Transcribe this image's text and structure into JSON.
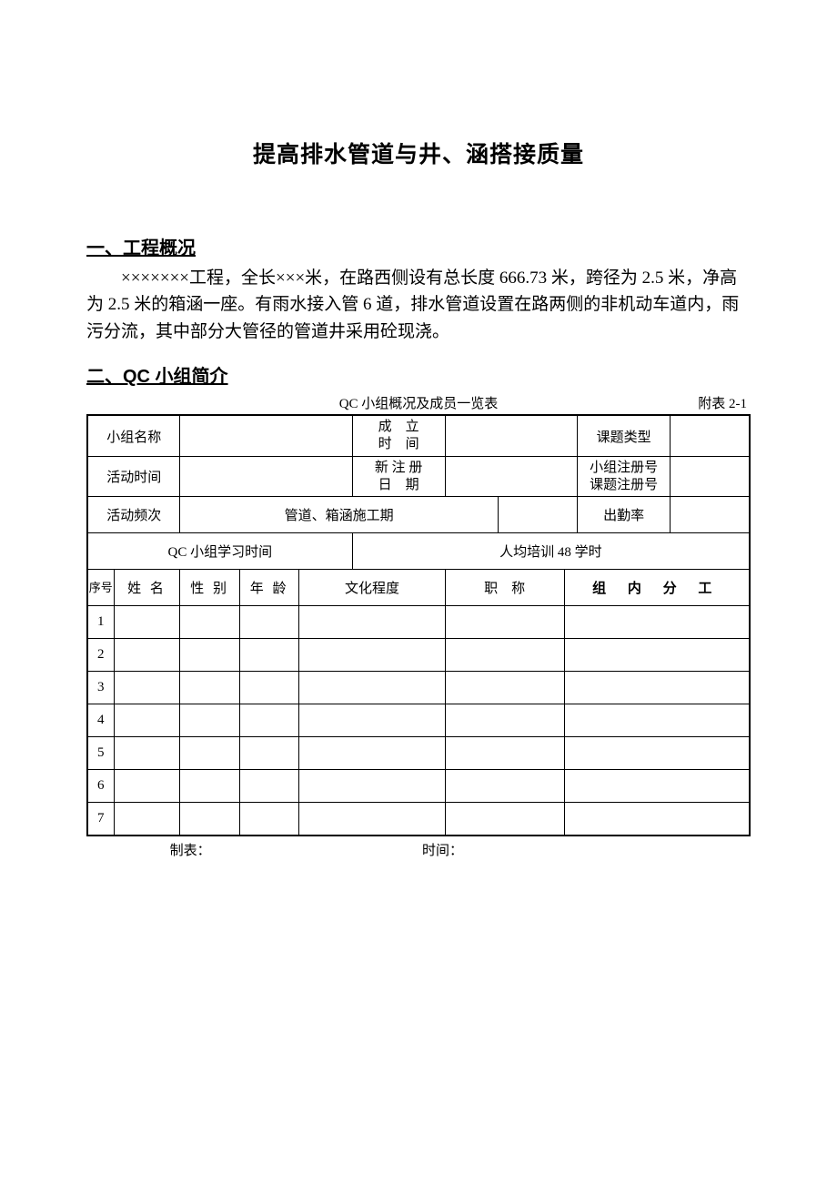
{
  "title": "提高排水管道与井、涵搭接质量",
  "section1": {
    "heading": "一、工程概况",
    "paragraph": "×××××××工程，全长×××米，在路西侧设有总长度 666.73 米，跨径为 2.5 米，净高为 2.5 米的箱涵一座。有雨水接入管 6 道，排水管道设置在路两侧的非机动车道内，雨污分流，其中部分大管径的管道井采用砼现浇。"
  },
  "section2": {
    "heading": "二、QC 小组简介",
    "caption": "QC 小组概况及成员一览表",
    "attachment": "附表 2-1",
    "labels": {
      "group_name": "小组名称",
      "setup_time_l1": "成　立",
      "setup_time_l2": "时　间",
      "topic_type": "课题类型",
      "activity_time": "活动时间",
      "reg_date_l1": "新 注 册",
      "reg_date_l2": "日　期",
      "group_reg_l1": "小组注册号",
      "group_reg_l2": "课题注册号",
      "activity_freq": "活动频次",
      "pipe_period": "管道、箱涵施工期",
      "attendance": "出勤率",
      "study_time": "QC 小组学习时间",
      "avg_training": "人均培训 48 学时",
      "col_index": "序号",
      "col_name": "姓 名",
      "col_gender": "性 别",
      "col_age": "年 龄",
      "col_edu": "文化程度",
      "col_title": "职　称",
      "col_role": "组 内 分 工"
    },
    "values": {
      "group_name": "",
      "setup_time": "",
      "topic_type": "",
      "activity_time": "",
      "reg_date": "",
      "group_reg": "",
      "activity_freq_extra": "",
      "attendance": "",
      "study_time_extra": ""
    },
    "members": [
      {
        "idx": "1",
        "name": "",
        "gender": "",
        "age": "",
        "edu": "",
        "title": "",
        "role": "",
        "bold": false
      },
      {
        "idx": "2",
        "name": "",
        "gender": "",
        "age": "",
        "edu": "",
        "title": "",
        "role": "",
        "bold": false
      },
      {
        "idx": "3",
        "name": "",
        "gender": "",
        "age": "",
        "edu": "",
        "title": "",
        "role": "",
        "bold": false
      },
      {
        "idx": "4",
        "name": "",
        "gender": "",
        "age": "",
        "edu": "",
        "title": "",
        "role": "",
        "bold": false
      },
      {
        "idx": "5",
        "name": "",
        "gender": "",
        "age": "",
        "edu": "",
        "title": "",
        "role": "",
        "bold": false
      },
      {
        "idx": "6",
        "name": "",
        "gender": "",
        "age": "",
        "edu": "",
        "title": "",
        "role": "",
        "bold": true
      },
      {
        "idx": "7",
        "name": "",
        "gender": "",
        "age": "",
        "edu": "",
        "title": "",
        "role": "",
        "bold": true
      }
    ],
    "footer": {
      "made_by": "制表：",
      "time": "时间："
    }
  },
  "style": {
    "page_bg": "#ffffff",
    "text_color": "#000000",
    "border_color": "#000000",
    "title_fontsize": 25,
    "heading_fontsize": 20,
    "body_fontsize": 19,
    "table_fontsize": 15,
    "outer_border_width": 2.5,
    "inner_border_width": 1,
    "column_widths_pct": [
      4,
      10,
      9,
      9,
      8,
      14,
      8,
      10,
      2,
      14,
      12
    ]
  }
}
